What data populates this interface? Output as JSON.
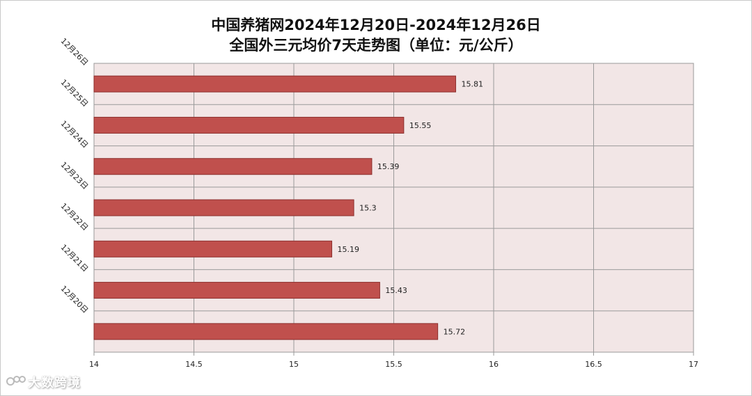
{
  "chart_data": {
    "type": "bar",
    "orientation": "horizontal",
    "title": "中国养猪网2024年12月20日-2024年12月26日",
    "subtitle": "全国外三元均价7天走势图（单位：元/公斤）",
    "categories": [
      "12月26日",
      "12月25日",
      "12月24日",
      "12月23日",
      "12月22日",
      "12月21日",
      "12月20日"
    ],
    "values": [
      15.81,
      15.55,
      15.39,
      15.3,
      15.19,
      15.43,
      15.72
    ],
    "value_labels": [
      "15.81",
      "15.55",
      "15.39",
      "15.3",
      "15.19",
      "15.43",
      "15.72"
    ],
    "xlim": [
      14,
      17
    ],
    "xticks": [
      "14",
      "14.5",
      "15",
      "15.5",
      "16",
      "16.5",
      "17"
    ],
    "grid": true,
    "colors": {
      "bar": "#c0504d",
      "bar_border": "#8c2f2d",
      "plot_bg": "#f2e6e6",
      "grid": "#9a9a9a"
    }
  },
  "watermark": "大数跨境"
}
